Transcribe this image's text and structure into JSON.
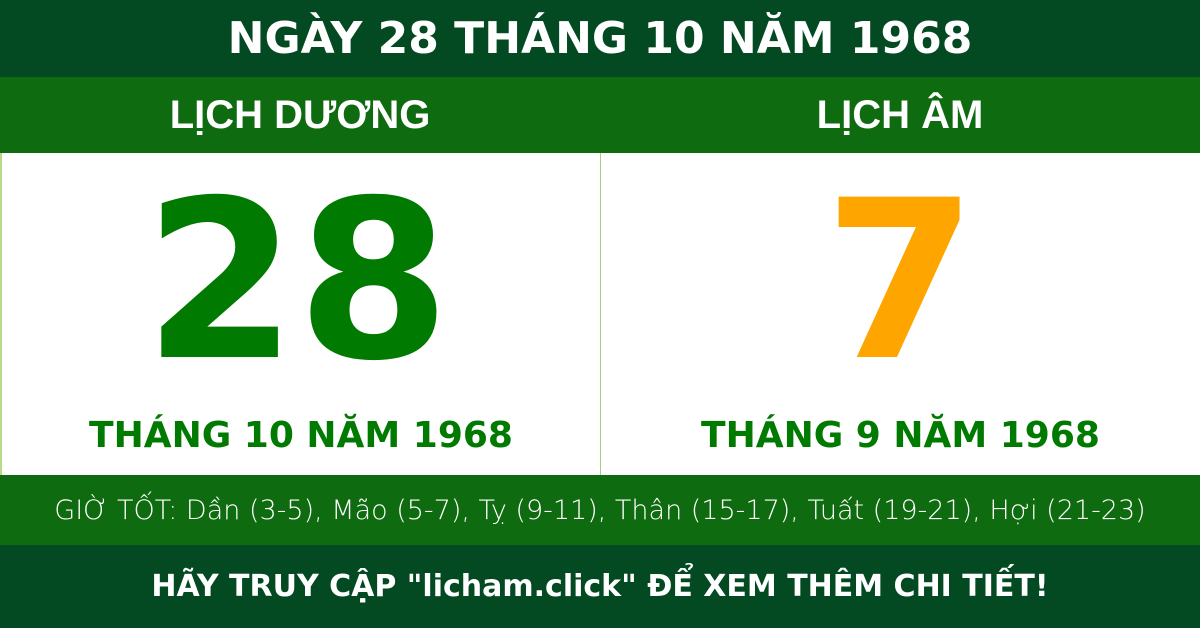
{
  "title": "NGÀY 28 THÁNG 10 NĂM 1968",
  "solar": {
    "heading": "LỊCH DƯƠNG",
    "day": "28",
    "month_year": "THÁNG 10 NĂM 1968"
  },
  "lunar": {
    "heading": "LỊCH ÂM",
    "day": "7",
    "month_year": "THÁNG 9 NĂM 1968"
  },
  "good_hours": "GIỜ TỐT: Dần (3-5), Mão (5-7), Tỵ (9-11), Thân (15-17), Tuất (19-21), Hợi (21-23)",
  "footer": "HÃY TRUY CẬP \"licham.click\" ĐỂ XEM THÊM CHI TIẾT!",
  "colors": {
    "dark_green": "#034a22",
    "green": "#0f6b0f",
    "solar_day": "#007a00",
    "lunar_day": "#ffa500"
  }
}
